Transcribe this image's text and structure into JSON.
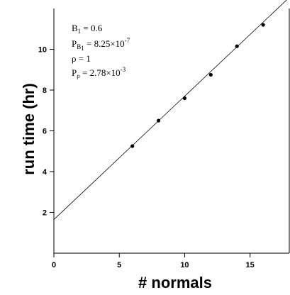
{
  "chart_data": {
    "type": "scatter",
    "xlabel": "# normals",
    "ylabel": "run time (hr)",
    "xlim": [
      0,
      18
    ],
    "ylim": [
      0,
      12
    ],
    "x_ticks": [
      0,
      5,
      10,
      15
    ],
    "y_ticks": [
      2,
      4,
      6,
      8,
      10
    ],
    "grid": false,
    "series": [
      {
        "x": [
          6,
          8,
          10,
          12,
          14,
          16
        ],
        "y": [
          5.25,
          6.5,
          7.6,
          8.75,
          10.15,
          11.2
        ]
      }
    ],
    "fit_line": {
      "intercept": 1.65,
      "slope": 0.605
    },
    "annotations": [
      {
        "base": "B",
        "sub": "1",
        "rest": " = 0.6"
      },
      {
        "base": "P",
        "sub": "B",
        "subsub": "1",
        "rest": " = 8.25×10",
        "sup": "-7"
      },
      {
        "base": "ρ",
        "rest": " = 1"
      },
      {
        "base": "P",
        "sub": "ρ",
        "rest": " = 2.78×10",
        "sup": "-3"
      }
    ]
  }
}
